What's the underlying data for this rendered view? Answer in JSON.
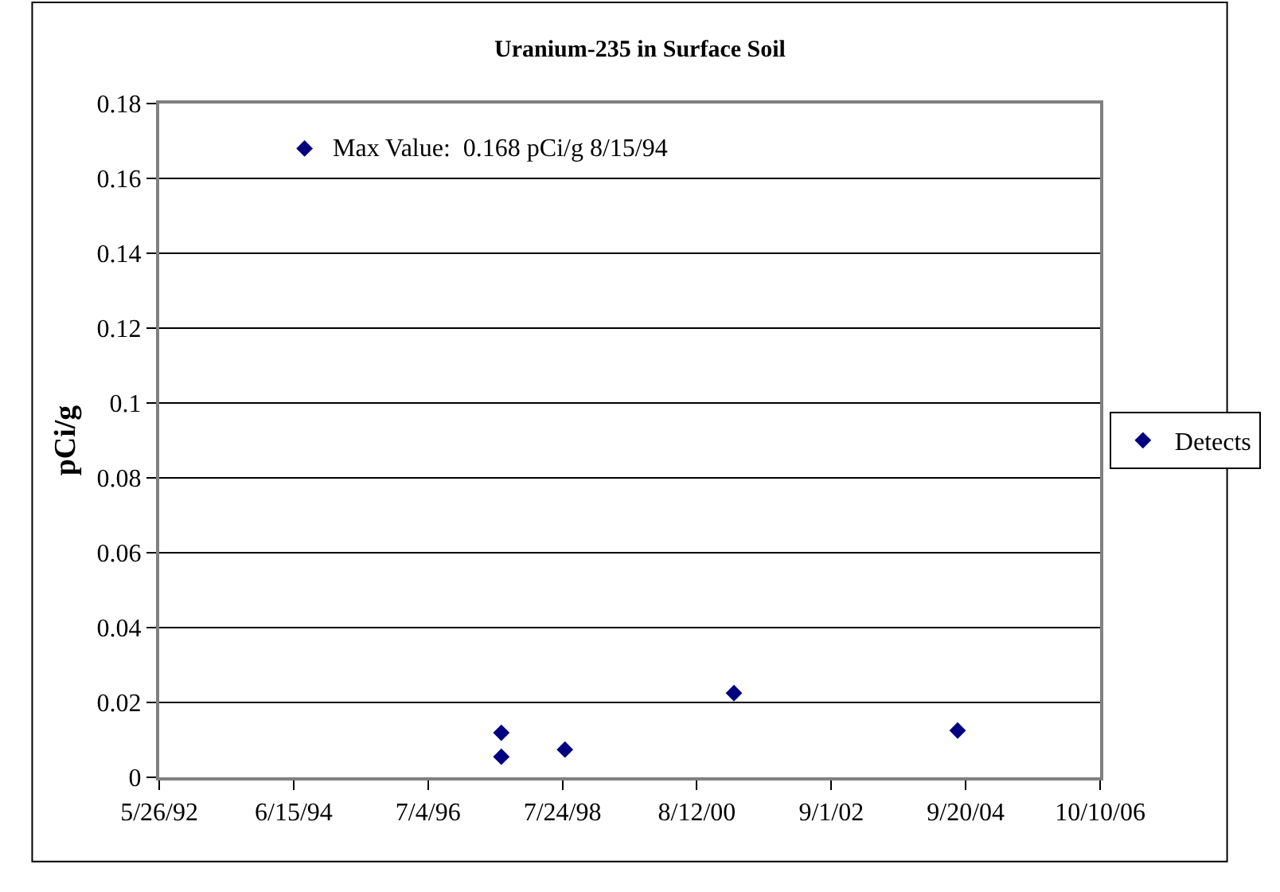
{
  "chart_data": {
    "type": "scatter",
    "title": "Uranium-235 in Surface Soil",
    "ylabel": "pCi/g",
    "x": [
      "1994-08-15",
      "1997-08-17",
      "1997-08-17",
      "1998-08-07",
      "2001-03-07",
      "2004-08-06"
    ],
    "series": [
      {
        "name": "Detects",
        "color": "#000080",
        "values": [
          0.168,
          0.0119,
          0.0055,
          0.0074,
          0.0225,
          0.0125
        ]
      }
    ],
    "annotations": [
      {
        "text": "Max Value:  0.168 pCi/g 8/15/94",
        "x": "1994-08-15",
        "y": 0.168
      }
    ],
    "xlim": [
      "1992-05-26",
      "2006-10-10"
    ],
    "xticks": [
      {
        "value": "1992-05-26",
        "label": "5/26/92"
      },
      {
        "value": "1994-06-15",
        "label": "6/15/94"
      },
      {
        "value": "1996-07-04",
        "label": "7/4/96"
      },
      {
        "value": "1998-07-24",
        "label": "7/24/98"
      },
      {
        "value": "2000-08-12",
        "label": "8/12/00"
      },
      {
        "value": "2002-09-01",
        "label": "9/1/02"
      },
      {
        "value": "2004-09-20",
        "label": "9/20/04"
      },
      {
        "value": "2006-10-10",
        "label": "10/10/06"
      }
    ],
    "ylim": [
      0,
      0.18
    ],
    "yticks": [
      0,
      0.02,
      0.04,
      0.06,
      0.08,
      0.1,
      0.12,
      0.14,
      0.16,
      0.18
    ],
    "grid": "y",
    "legend": "right",
    "marker": "diamond"
  }
}
